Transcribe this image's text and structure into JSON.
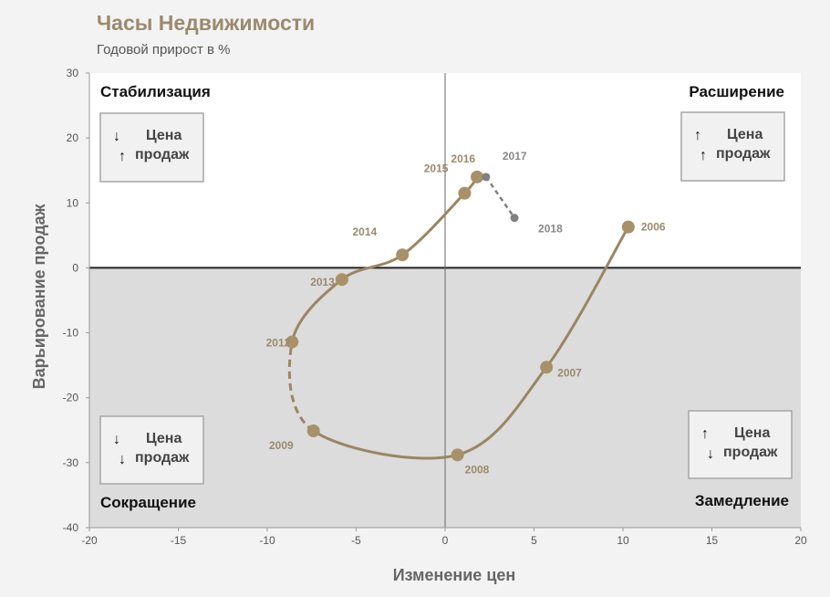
{
  "chart_data": {
    "type": "line",
    "title": "Часы Недвижимости",
    "subtitle": "Годовой прирост в %",
    "xlabel": "Изменение цен",
    "ylabel": "Варьирование продаж",
    "xlim": [
      -20,
      20
    ],
    "ylim": [
      -40,
      30
    ],
    "xticks": [
      "-20",
      "-15",
      "-10",
      "-5",
      "0",
      "5",
      "10",
      "15",
      "20"
    ],
    "yticks": [
      "30",
      "20",
      "10",
      "0",
      "-10",
      "-20",
      "-30",
      "-40"
    ],
    "series": [
      {
        "points": [
          {
            "label": "2006",
            "x": 10.3,
            "y": 6.3
          },
          {
            "label": "2007",
            "x": 5.7,
            "y": -15.3
          },
          {
            "label": "2008",
            "x": 0.7,
            "y": -28.8
          },
          {
            "label": "2009",
            "x": -7.4,
            "y": -25.1
          },
          {
            "label": "2012",
            "x": -8.6,
            "y": -11.4
          },
          {
            "label": "2013",
            "x": -5.8,
            "y": -1.8
          },
          {
            "label": "2014",
            "x": -2.4,
            "y": 2.0
          },
          {
            "label": "2015",
            "x": 1.1,
            "y": 11.5
          },
          {
            "label": "2016",
            "x": 1.8,
            "y": 14.0
          },
          {
            "label": "2017",
            "x": 2.3,
            "y": 14.0
          },
          {
            "label": "2018",
            "x": 3.9,
            "y": 7.7
          }
        ]
      }
    ],
    "quadrants": {
      "top_left": {
        "name": "Стабилизация",
        "line1": "Цена",
        "line2": "продаж",
        "arrow1": "↓",
        "arrow2": "↑"
      },
      "top_right": {
        "name": "Расширение",
        "line1": "Цена",
        "line2": "продаж",
        "arrow1": "↑",
        "arrow2": "↑"
      },
      "bottom_left": {
        "name": "Сокращение",
        "line1": "Цена",
        "line2": "продаж",
        "arrow1": "↓",
        "arrow2": "↓"
      },
      "bottom_right": {
        "name": "Замедление",
        "line1": "Цена",
        "line2": "продаж",
        "arrow1": "↑",
        "arrow2": "↓"
      }
    },
    "colors": {
      "line": "#9a8662",
      "marker": "#a89168",
      "projection": "#808080",
      "upper_bg": "#ffffff",
      "lower_bg": "#dcdcdc"
    },
    "grid": false,
    "legend": "none"
  }
}
